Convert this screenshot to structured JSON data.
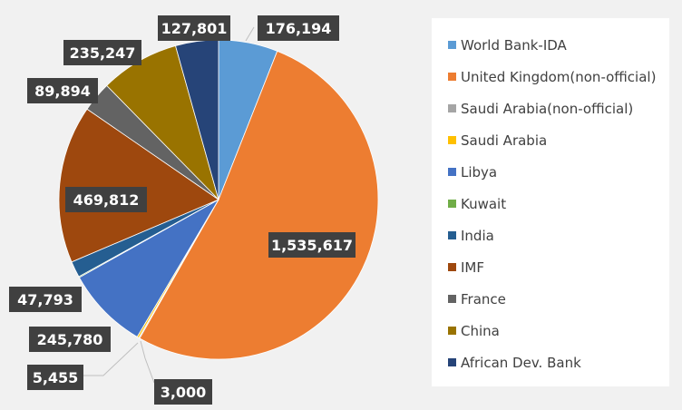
{
  "chart_data": {
    "type": "pie",
    "legend_position": "right",
    "slices": [
      {
        "name": "World Bank-IDA",
        "value": 176194,
        "label": "176,194",
        "color": "#5b9bd5"
      },
      {
        "name": "United Kingdom(non-official)",
        "value": 1535617,
        "label": "1,535,617",
        "color": "#ed7d31"
      },
      {
        "name": "Saudi Arabia(non-official)",
        "value": 3000,
        "label": "3,000",
        "color": "#a5a5a5"
      },
      {
        "name": "Saudi Arabia",
        "value": 5455,
        "label": "5,455",
        "color": "#ffc000"
      },
      {
        "name": "Libya",
        "value": 245780,
        "label": "245,780",
        "color": "#4472c4"
      },
      {
        "name": "Kuwait",
        "value": 3000,
        "label": "",
        "color": "#70ad47"
      },
      {
        "name": "India",
        "value": 47793,
        "label": "47,793",
        "color": "#255e91"
      },
      {
        "name": "IMF",
        "value": 469812,
        "label": "469,812",
        "color": "#9e480e"
      },
      {
        "name": "France",
        "value": 89894,
        "label": "89,894",
        "color": "#636363"
      },
      {
        "name": "China",
        "value": 235247,
        "label": "235,247",
        "color": "#997300"
      },
      {
        "name": "African Dev. Bank",
        "value": 127801,
        "label": "127,801",
        "color": "#264478"
      }
    ]
  }
}
